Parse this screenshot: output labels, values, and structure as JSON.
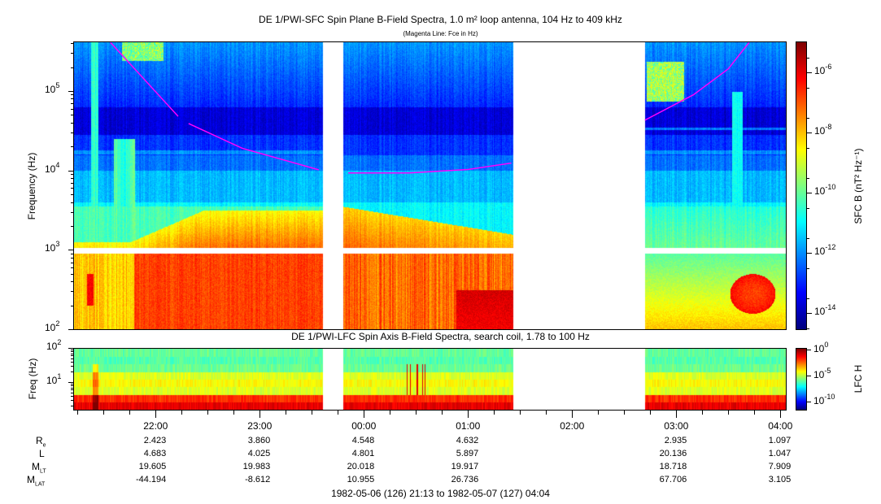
{
  "chart_data": [
    {
      "type": "heatmap",
      "title": "DE 1/PWI-SFC  Spin Plane B-Field Spectra, 1.0 m² loop antenna, 104 Hz to 409 kHz",
      "subtitle": "(Magenta Line: Fce in Hz)",
      "ylabel": "Frequency (Hz)",
      "yscale": "log",
      "ylim": [
        100,
        409000
      ],
      "y_ticks": [
        {
          "base": "10",
          "exp": "5",
          "value": 100000
        },
        {
          "base": "10",
          "exp": "4",
          "value": 10000
        },
        {
          "base": "10",
          "exp": "3",
          "value": 1000
        },
        {
          "base": "10",
          "exp": "2",
          "value": 100
        }
      ],
      "colorbar": {
        "label": "SFC B (nT² Hz⁻¹)",
        "scale": "log",
        "colormap": "jet",
        "range": [
          3e-15,
          1e-05
        ],
        "ticks": [
          {
            "base": "10",
            "exp": "-6",
            "value": 1e-06
          },
          {
            "base": "10",
            "exp": "-8",
            "value": 1e-08
          },
          {
            "base": "10",
            "exp": "-10",
            "value": 1e-10
          },
          {
            "base": "10",
            "exp": "-12",
            "value": 1e-12
          },
          {
            "base": "10",
            "exp": "-14",
            "value": 1e-14
          }
        ]
      },
      "data_gaps": [
        [
          "23:36",
          "23:48"
        ],
        [
          "01:26",
          "02:42"
        ]
      ],
      "fce_line": {
        "color": "#ff00ff",
        "segments": [
          [
            {
              "time": "21:34",
              "freq_hz": 409000
            },
            {
              "time": "21:50",
              "freq_hz": 170000
            },
            {
              "time": "22:13",
              "freq_hz": 48000
            }
          ],
          [
            {
              "time": "22:19",
              "freq_hz": 39000
            },
            {
              "time": "22:50",
              "freq_hz": 19000
            },
            {
              "time": "23:34",
              "freq_hz": 10200
            }
          ],
          [
            {
              "time": "23:51",
              "freq_hz": 9300
            },
            {
              "time": "00:26",
              "freq_hz": 9300
            },
            {
              "time": "01:00",
              "freq_hz": 10300
            },
            {
              "time": "01:25",
              "freq_hz": 12400
            }
          ],
          [
            {
              "time": "02:42",
              "freq_hz": 43000
            },
            {
              "time": "03:10",
              "freq_hz": 90000
            },
            {
              "time": "03:30",
              "freq_hz": 190000
            },
            {
              "time": "03:42",
              "freq_hz": 409000
            }
          ]
        ]
      }
    },
    {
      "type": "heatmap",
      "title": "DE 1/PWI-LFC  Spin Axis B-Field Spectra, search coil, 1.78 to 100 Hz",
      "ylabel": "Freq (Hz)",
      "yscale": "log",
      "ylim": [
        1.78,
        100
      ],
      "y_ticks": [
        {
          "base": "10",
          "exp": "2",
          "value": 100
        },
        {
          "base": "10",
          "exp": "1",
          "value": 10
        }
      ],
      "colorbar": {
        "label": "LFC H",
        "scale": "log",
        "colormap": "jet",
        "range": [
          1e-12,
          1
        ],
        "ticks": [
          {
            "base": "10",
            "exp": "0",
            "value": 1
          },
          {
            "base": "10",
            "exp": "-5",
            "value": 1e-05
          },
          {
            "base": "10",
            "exp": "-10",
            "value": 1e-10
          }
        ]
      },
      "data_gaps": [
        [
          "23:36",
          "23:48"
        ],
        [
          "01:26",
          "02:42"
        ]
      ]
    }
  ],
  "x_axis": {
    "range": [
      "21:13",
      "04:04"
    ],
    "ticks": [
      "22:00",
      "23:00",
      "00:00",
      "01:00",
      "02:00",
      "03:00",
      "04:00"
    ]
  },
  "ephemeris": {
    "rows": [
      {
        "label": "R",
        "sub": "e",
        "values": [
          "2.423",
          "3.860",
          "4.548",
          "4.632",
          "",
          "2.935",
          "1.097"
        ]
      },
      {
        "label": "L",
        "sub": "",
        "values": [
          "4.683",
          "4.025",
          "4.801",
          "5.897",
          "",
          "20.136",
          "1.047"
        ]
      },
      {
        "label": "M",
        "sub": "LT",
        "values": [
          "19.605",
          "19.983",
          "20.018",
          "19.917",
          "",
          "18.718",
          "7.909"
        ]
      },
      {
        "label": "M",
        "sub": "LAT",
        "values": [
          "-44.194",
          "-8.612",
          "10.955",
          "26.736",
          "",
          "67.706",
          "3.105"
        ]
      }
    ]
  },
  "time_range": "1982-05-06 (126) 21:13 to 1982-05-07 (127) 04:04"
}
